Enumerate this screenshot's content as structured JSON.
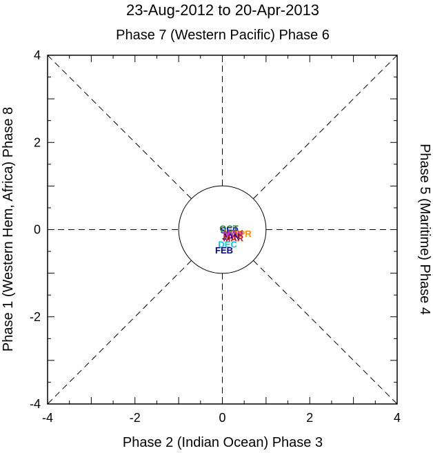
{
  "chart_data": {
    "type": "scatter",
    "title": "23-Aug-2012 to 20-Apr-2013",
    "phase_labels": {
      "top": "Phase 7 (Western Pacific) Phase 6",
      "bottom": "Phase 2 (Indian Ocean) Phase 3",
      "left": "Phase 1 (Western Hem, Africa) Phase 8",
      "right": "Phase 5 (Maritime) Phase 4"
    },
    "xlim": [
      -4,
      4
    ],
    "ylim": [
      -4,
      4
    ],
    "x_ticks": [
      "-4",
      "-2",
      "0",
      "2",
      "4"
    ],
    "y_ticks": [
      "-4",
      "-2",
      "0",
      "2",
      "4"
    ],
    "unit_circle_radius": 1,
    "guides": "dashed diagonals and axes",
    "month_labels": [
      {
        "text": "OCT",
        "x": 0.15,
        "y": 0.03,
        "color": "#1a8a1a"
      },
      {
        "text": "SEP",
        "x": 0.16,
        "y": -0.01,
        "color": "#2020c8"
      },
      {
        "text": "APR",
        "x": 0.45,
        "y": -0.09,
        "color": "#ff8c00"
      },
      {
        "text": "NOV",
        "x": 0.25,
        "y": -0.07,
        "color": "#b05020"
      },
      {
        "text": "MAR",
        "x": 0.25,
        "y": -0.1,
        "color": "#d020d0"
      },
      {
        "text": "JAN",
        "x": 0.2,
        "y": -0.16,
        "color": "#0000a0"
      },
      {
        "text": "DEC",
        "x": 0.12,
        "y": -0.33,
        "color": "#00c8e0"
      },
      {
        "text": "MAR",
        "x": 0.25,
        "y": -0.19,
        "color": "#c01a1a"
      },
      {
        "text": "FEB",
        "x": 0.04,
        "y": -0.47,
        "color": "#000080"
      }
    ]
  }
}
